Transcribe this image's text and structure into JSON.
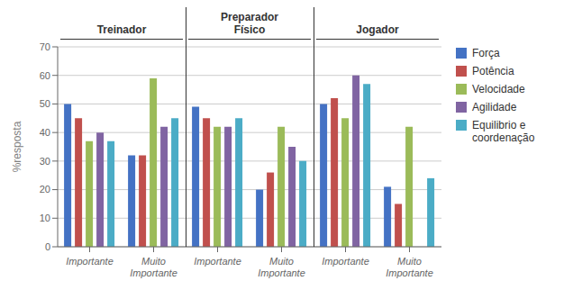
{
  "chart_data": {
    "type": "bar",
    "categories": [
      "Importante",
      "Muito\nImportante",
      "Importante",
      "Muito\nImportante",
      "Importante",
      "Muito\nImportante"
    ],
    "series": [
      {
        "name": "Força",
        "color": "#4472C4",
        "values": [
          50,
          32,
          49,
          20,
          50,
          21
        ]
      },
      {
        "name": "Potência",
        "color": "#C0504D",
        "values": [
          45,
          32,
          45,
          26,
          52,
          15
        ]
      },
      {
        "name": "Velocidade",
        "color": "#9BBB59",
        "values": [
          37,
          59,
          42,
          42,
          45,
          42
        ]
      },
      {
        "name": "Agilidade",
        "color": "#8064A2",
        "values": [
          40,
          42,
          42,
          35,
          60,
          0
        ]
      },
      {
        "name": "Equilibrio e\ncoordenação",
        "color": "#4BACC6",
        "values": [
          37,
          45,
          45,
          30,
          57,
          24
        ]
      }
    ],
    "ylim": [
      0,
      70
    ],
    "yticks": [
      0,
      10,
      20,
      30,
      40,
      50,
      60,
      70
    ],
    "ylabel": "%resposta",
    "annotations": [
      "Treinador",
      "Preparador\nFísico",
      "Jogador"
    ],
    "grid": true,
    "legend": "right"
  }
}
